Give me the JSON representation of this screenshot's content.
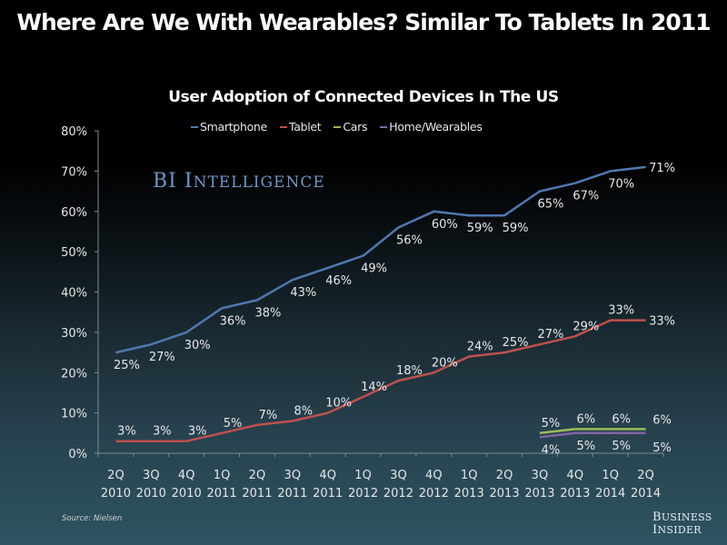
{
  "header": {
    "title": "Where Are We With Wearables? Similar To Tablets In 2011"
  },
  "watermark": {
    "first": "BI",
    "word_cap": "I",
    "word_rest": "NTELLIGENCE"
  },
  "footer": {
    "source": "Source: Nielsen",
    "brand_line1_cap": "B",
    "brand_line1_rest": "USINESS",
    "brand_line2_cap": "I",
    "brand_line2_rest": "NSIDER"
  },
  "chart_data": {
    "type": "line",
    "title": "User Adoption of Connected Devices In The US",
    "xlabel": "",
    "ylabel": "",
    "ylim": [
      0,
      80
    ],
    "yticks": [
      0,
      10,
      20,
      30,
      40,
      50,
      60,
      70,
      80
    ],
    "ytick_labels": [
      "0%",
      "10%",
      "20%",
      "30%",
      "40%",
      "50%",
      "60%",
      "70%",
      "80%"
    ],
    "grid": false,
    "legend": "top-center",
    "categories": [
      [
        "2Q",
        "2010"
      ],
      [
        "3Q",
        "2010"
      ],
      [
        "4Q",
        "2010"
      ],
      [
        "1Q",
        "2011"
      ],
      [
        "2Q",
        "2011"
      ],
      [
        "3Q",
        "2011"
      ],
      [
        "4Q",
        "2011"
      ],
      [
        "1Q",
        "2012"
      ],
      [
        "3Q",
        "2012"
      ],
      [
        "4Q",
        "2012"
      ],
      [
        "1Q",
        "2013"
      ],
      [
        "2Q",
        "2013"
      ],
      [
        "3Q",
        "2013"
      ],
      [
        "4Q",
        "2013"
      ],
      [
        "1Q",
        "2014"
      ],
      [
        "2Q",
        "2014"
      ]
    ],
    "series": [
      {
        "name": "Smartphone",
        "color": "#4f78b0",
        "values": [
          25,
          27,
          30,
          36,
          38,
          43,
          46,
          49,
          56,
          60,
          59,
          59,
          65,
          67,
          70,
          71
        ],
        "label_pos": "below"
      },
      {
        "name": "Tablet",
        "color": "#c0504d",
        "values": [
          3,
          3,
          3,
          5,
          7,
          8,
          10,
          14,
          18,
          20,
          24,
          25,
          27,
          29,
          33,
          33
        ],
        "label_pos": "above"
      },
      {
        "name": "Cars",
        "color": "#9bbb59",
        "values": [
          null,
          null,
          null,
          null,
          null,
          null,
          null,
          null,
          null,
          null,
          null,
          null,
          5,
          6,
          6,
          6
        ],
        "label_pos": "above"
      },
      {
        "name": "Home/Wearables",
        "color": "#8064a2",
        "values": [
          null,
          null,
          null,
          null,
          null,
          null,
          null,
          null,
          null,
          null,
          null,
          null,
          4,
          5,
          5,
          5
        ],
        "label_pos": "below"
      }
    ]
  }
}
